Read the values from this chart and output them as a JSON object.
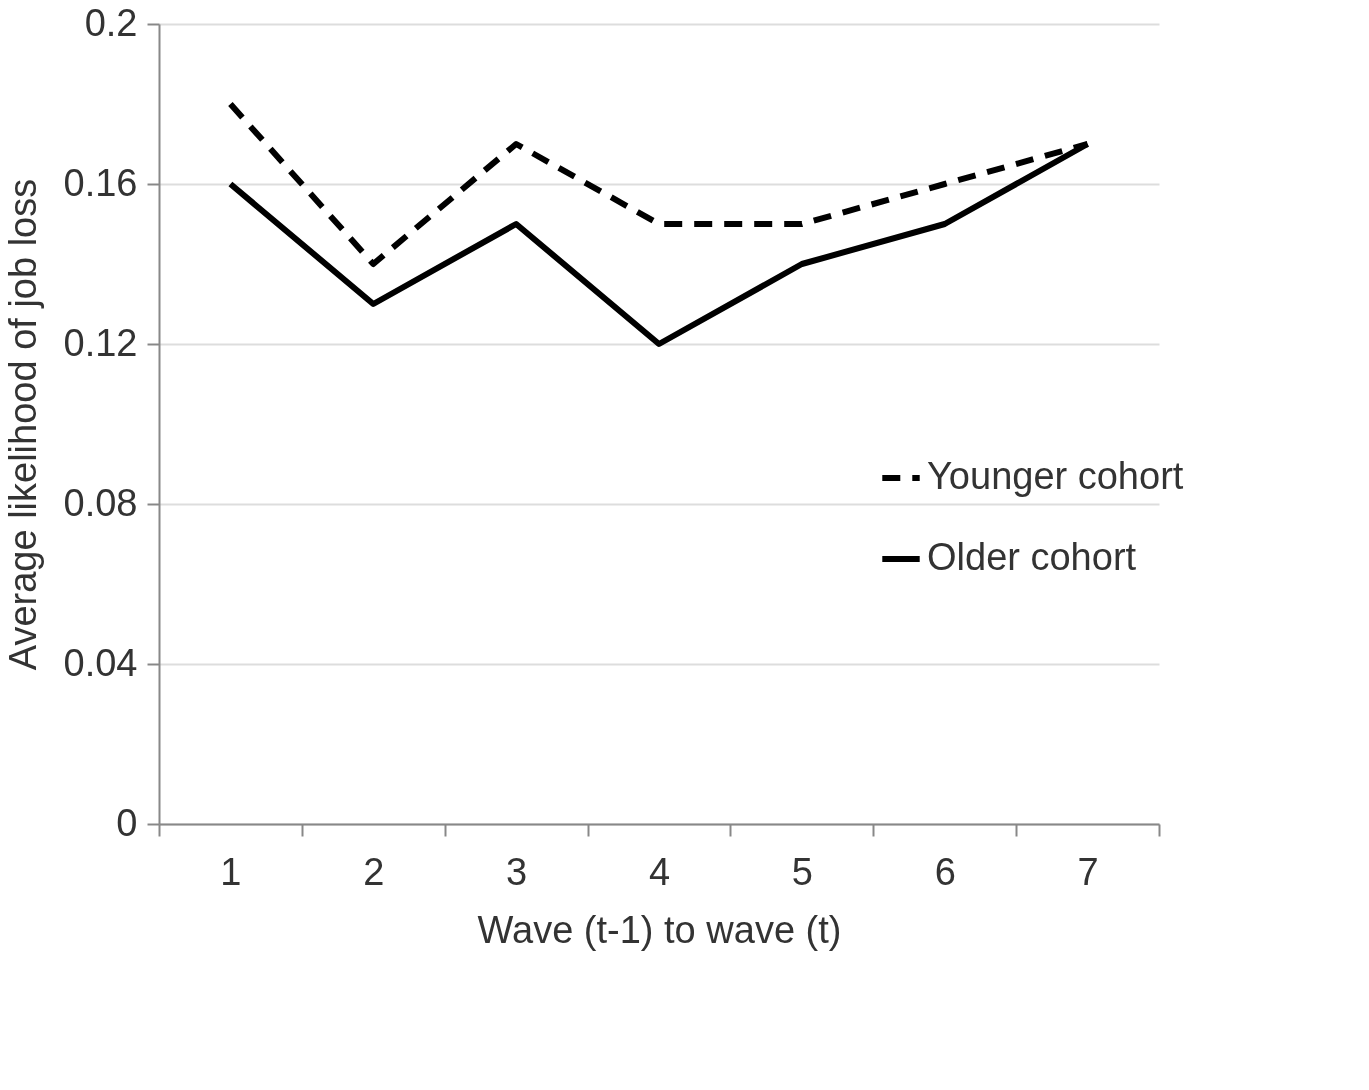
{
  "chart_data": {
    "type": "line",
    "xlabel": "Wave (t-1) to wave (t)",
    "ylabel": "Average likelihood of job loss",
    "categories": [
      "1",
      "2",
      "3",
      "4",
      "5",
      "6",
      "7"
    ],
    "series": [
      {
        "name": "Younger cohort",
        "color": "#000000",
        "line_style": "dashed",
        "values": [
          0.18,
          0.14,
          0.17,
          0.15,
          0.15,
          0.16,
          0.17
        ]
      },
      {
        "name": "Older cohort",
        "color": "#000000",
        "line_style": "solid",
        "values": [
          0.16,
          0.13,
          0.15,
          0.12,
          0.14,
          0.15,
          0.17
        ]
      }
    ],
    "ylim": [
      0,
      0.2
    ],
    "yticks": [
      0,
      0.04,
      0.08,
      0.12,
      0.16,
      0.2
    ],
    "grid": "y",
    "legend": "right",
    "marker": "none"
  }
}
